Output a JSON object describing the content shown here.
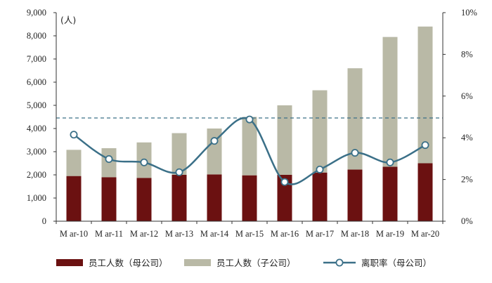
{
  "chart_data": {
    "type": "bar+line",
    "unit_label": "(人)",
    "categories": [
      "M ar-10",
      "M ar-11",
      "M ar-12",
      "M ar-13",
      "M ar-14",
      "M ar-15",
      "M ar-16",
      "M ar-17",
      "M ar-18",
      "M ar-19",
      "M ar-20"
    ],
    "series": [
      {
        "name": "员工人数（母公司）",
        "type": "bar-stacked",
        "axis": "left",
        "color": "#6b1111",
        "values": [
          1950,
          1900,
          1870,
          2000,
          2020,
          1980,
          2000,
          2100,
          2230,
          2350,
          2500
        ]
      },
      {
        "name": "员工人数（子公司）",
        "type": "bar-stacked",
        "axis": "left",
        "color": "#b9b9a6",
        "values": [
          1130,
          1250,
          1530,
          1800,
          1980,
          2520,
          3000,
          3550,
          4370,
          5600,
          5900
        ]
      },
      {
        "name": "离职率（母公司）",
        "type": "line",
        "axis": "right",
        "color": "#3b7088",
        "marker": "circle",
        "values": [
          4.15,
          2.98,
          2.82,
          2.35,
          3.85,
          4.88,
          1.88,
          2.48,
          3.28,
          2.82,
          3.65
        ]
      }
    ],
    "y_left": {
      "min": 0,
      "max": 9000,
      "ticks": [
        0,
        1000,
        2000,
        3000,
        4000,
        5000,
        6000,
        7000,
        8000,
        9000
      ],
      "tick_labels": [
        "0",
        "1,000",
        "2,000",
        "3,000",
        "4,000",
        "5,000",
        "6,000",
        "7,000",
        "8,000",
        "9,000"
      ]
    },
    "y_right": {
      "min": 0,
      "max": 10,
      "ticks": [
        0,
        2,
        4,
        6,
        8,
        10
      ],
      "tick_labels": [
        "0%",
        "2%",
        "4%",
        "6%",
        "8%",
        "10%"
      ]
    },
    "reference_line": {
      "axis": "right",
      "value": 4.95,
      "style": "dashed",
      "color": "#3b7088"
    },
    "grid": false,
    "legend_position": "bottom"
  }
}
